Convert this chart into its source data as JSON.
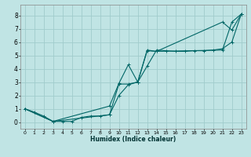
{
  "xlabel": "Humidex (Indice chaleur)",
  "ylabel": "",
  "bg_color": "#c0e4e4",
  "grid_color": "#a0cccc",
  "line_color": "#006666",
  "xlim": [
    -0.5,
    23.5
  ],
  "ylim": [
    -0.5,
    8.8
  ],
  "xticks": [
    0,
    1,
    2,
    3,
    4,
    5,
    6,
    7,
    8,
    9,
    10,
    11,
    12,
    13,
    14,
    15,
    16,
    17,
    18,
    19,
    20,
    21,
    22,
    23
  ],
  "yticks": [
    0,
    1,
    2,
    3,
    4,
    5,
    6,
    7,
    8
  ],
  "series": [
    {
      "x": [
        0,
        1,
        2,
        3,
        4,
        5,
        6,
        7,
        8,
        9,
        10,
        11,
        12,
        13,
        14,
        15,
        16,
        17,
        18,
        19,
        20,
        21,
        22,
        23
      ],
      "y": [
        1.0,
        0.75,
        0.45,
        0.05,
        0.05,
        0.05,
        0.35,
        0.45,
        0.45,
        0.55,
        2.0,
        2.8,
        3.0,
        4.2,
        5.4,
        5.35,
        5.3,
        5.3,
        5.35,
        5.35,
        5.4,
        5.5,
        6.0,
        8.1
      ]
    },
    {
      "x": [
        0,
        3,
        9,
        10,
        11,
        12,
        13,
        14,
        21,
        22,
        23
      ],
      "y": [
        1.0,
        0.05,
        1.2,
        2.9,
        4.3,
        3.0,
        5.4,
        5.3,
        7.5,
        6.9,
        8.1
      ]
    },
    {
      "x": [
        0,
        3,
        9,
        10,
        11,
        12,
        13,
        14,
        21,
        22,
        23
      ],
      "y": [
        1.0,
        0.05,
        0.55,
        2.85,
        2.85,
        3.0,
        5.35,
        5.3,
        5.4,
        7.5,
        8.1
      ]
    }
  ]
}
